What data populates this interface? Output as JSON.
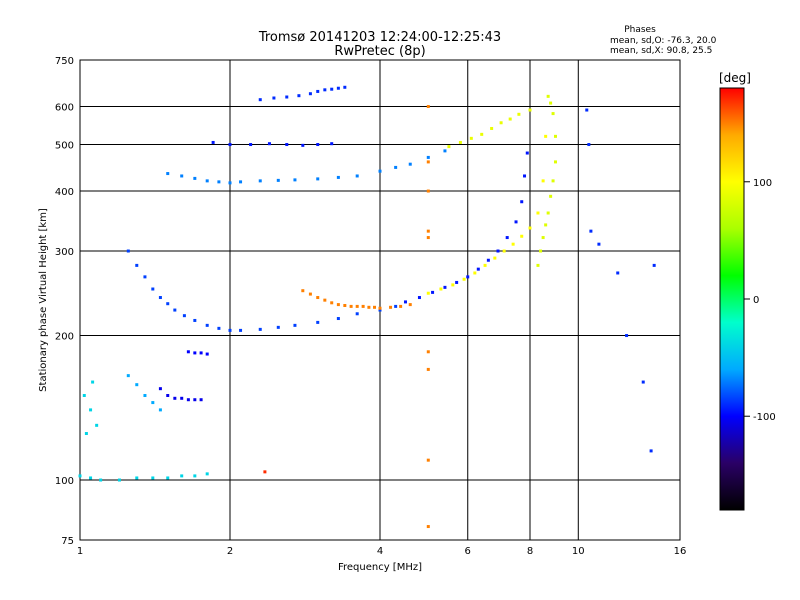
{
  "chart_data": {
    "type": "scatter",
    "title": "Tromsø 20141203 12:24:00-12:25:43",
    "subtitle": "RwPretec (8p)",
    "xlabel": "Frequency [MHz]",
    "ylabel": "Stationary phase Virtual Height [km]",
    "x_scale": "log",
    "y_scale": "log",
    "xlim": [
      1,
      16
    ],
    "ylim": [
      75,
      750
    ],
    "x_ticks": [
      1,
      2,
      4,
      6,
      8,
      10,
      16
    ],
    "y_ticks": [
      75,
      100,
      200,
      300,
      400,
      500,
      600,
      750
    ],
    "grid": true,
    "phase_stats": {
      "heading": "Phases",
      "line_o": "mean, sd,O: -76.3, 20.0",
      "line_x": "mean, sd,X:  90.8, 25.5"
    },
    "colorbar": {
      "unit": "[deg]",
      "range": [
        -180,
        180
      ],
      "tick_labels": [
        "100",
        "0",
        "-100"
      ],
      "tick_values": [
        100,
        0,
        -100
      ],
      "colors": [
        "#000000",
        "#2a0066",
        "#0000ff",
        "#00aaff",
        "#00ffcc",
        "#00ff00",
        "#aaff00",
        "#ffff00",
        "#ffaa00",
        "#ff0000"
      ]
    },
    "series": [
      {
        "x": [
          2.3,
          2.45,
          2.6,
          2.75,
          2.9,
          3.0,
          3.1,
          3.2,
          3.3,
          3.4
        ],
        "y": [
          620,
          625,
          628,
          632,
          638,
          645,
          650,
          652,
          655,
          658
        ],
        "phase": -90
      },
      {
        "x": [
          1.85,
          2.0,
          2.2,
          2.4,
          2.6,
          2.8,
          3.0,
          3.2
        ],
        "y": [
          505,
          500,
          500,
          502,
          500,
          498,
          500,
          502
        ],
        "phase": -95
      },
      {
        "x": [
          1.5,
          1.6,
          1.7,
          1.8,
          1.9,
          2.0,
          2.1,
          2.3,
          2.5,
          2.7,
          3.0,
          3.3,
          3.6,
          4.0,
          4.3,
          4.6,
          5.0,
          5.4
        ],
        "y": [
          435,
          430,
          425,
          420,
          418,
          416,
          418,
          420,
          421,
          422,
          424,
          427,
          430,
          440,
          448,
          455,
          470,
          485
        ],
        "phase": -70
      },
      {
        "x": [
          5.5,
          5.8,
          6.1,
          6.4,
          6.7,
          7.0,
          7.3,
          7.6,
          8.0
        ],
        "y": [
          495,
          505,
          515,
          525,
          540,
          555,
          565,
          578,
          590
        ],
        "phase": 90
      },
      {
        "x": [
          1.25,
          1.3,
          1.35,
          1.4,
          1.45,
          1.5,
          1.55,
          1.62,
          1.7,
          1.8,
          1.9,
          2.0,
          2.1,
          2.3,
          2.5,
          2.7,
          3.0,
          3.3,
          3.6,
          4.0,
          4.3
        ],
        "y": [
          300,
          280,
          265,
          250,
          240,
          233,
          226,
          220,
          215,
          210,
          207,
          205,
          205,
          206,
          208,
          210,
          213,
          217,
          222,
          226,
          230
        ],
        "phase": -85
      },
      {
        "x": [
          2.8,
          2.9,
          3.0,
          3.1,
          3.2,
          3.3,
          3.4,
          3.5,
          3.6,
          3.7,
          3.8,
          3.9,
          4.0,
          4.2,
          4.4,
          4.6
        ],
        "y": [
          248,
          244,
          240,
          237,
          234,
          232,
          231,
          230,
          230,
          230,
          229,
          229,
          228,
          229,
          230,
          232
        ],
        "phase": 150
      },
      {
        "x": [
          4.5,
          4.8,
          5.1,
          5.4,
          5.7,
          6.0,
          6.3,
          6.6,
          6.9,
          7.2,
          7.5,
          7.7,
          7.8,
          7.9
        ],
        "y": [
          235,
          240,
          246,
          252,
          258,
          265,
          275,
          287,
          300,
          320,
          345,
          380,
          430,
          480
        ],
        "phase": -95
      },
      {
        "x": [
          5.0,
          5.3,
          5.6,
          5.9,
          6.2,
          6.5,
          6.8,
          7.1,
          7.4,
          7.7,
          8.0,
          8.3,
          8.5,
          8.6
        ],
        "y": [
          245,
          250,
          255,
          262,
          270,
          280,
          290,
          300,
          310,
          322,
          335,
          360,
          420,
          520
        ],
        "phase": 100
      },
      {
        "x": [
          8.3,
          8.4,
          8.5,
          8.6,
          8.7,
          8.8,
          8.9,
          9.0,
          9.0,
          8.9,
          8.8,
          8.7
        ],
        "y": [
          280,
          300,
          320,
          340,
          360,
          390,
          420,
          460,
          520,
          580,
          610,
          630
        ],
        "phase": 85
      },
      {
        "x": [
          1.45,
          1.5,
          1.55,
          1.6,
          1.65,
          1.7,
          1.75
        ],
        "y": [
          155,
          150,
          148,
          148,
          147,
          147,
          147
        ],
        "phase": -105
      },
      {
        "x": [
          1.65,
          1.7,
          1.75,
          1.8
        ],
        "y": [
          185,
          184,
          184,
          183
        ],
        "phase": -100
      },
      {
        "x": [
          1.0,
          1.05,
          1.1,
          1.2,
          1.3,
          1.4,
          1.5,
          1.6,
          1.7,
          1.8
        ],
        "y": [
          102,
          101,
          100,
          100,
          101,
          101,
          101,
          102,
          102,
          103
        ],
        "phase": -40
      },
      {
        "x": [
          1.25,
          1.3,
          1.35,
          1.4,
          1.45
        ],
        "y": [
          165,
          158,
          150,
          145,
          140
        ],
        "phase": -60
      },
      {
        "x": [
          1.02,
          1.05,
          1.08,
          1.03,
          1.06
        ],
        "y": [
          150,
          140,
          130,
          125,
          160
        ],
        "phase": -40
      },
      {
        "x": [
          5.0,
          5.0,
          5.0,
          5.0,
          5.0,
          5.0,
          5.0,
          5.0,
          5.0
        ],
        "y": [
          600,
          460,
          400,
          330,
          320,
          185,
          170,
          110,
          80
        ],
        "phase": 150
      },
      {
        "x": [
          10.4,
          10.5,
          10.6,
          11.0,
          12.0,
          12.5,
          13.5,
          14.0,
          14.2
        ],
        "y": [
          590,
          500,
          330,
          310,
          270,
          200,
          160,
          115,
          280
        ],
        "phase": -90
      },
      {
        "x": [
          2.35
        ],
        "y": [
          104
        ],
        "phase": 170
      }
    ]
  }
}
